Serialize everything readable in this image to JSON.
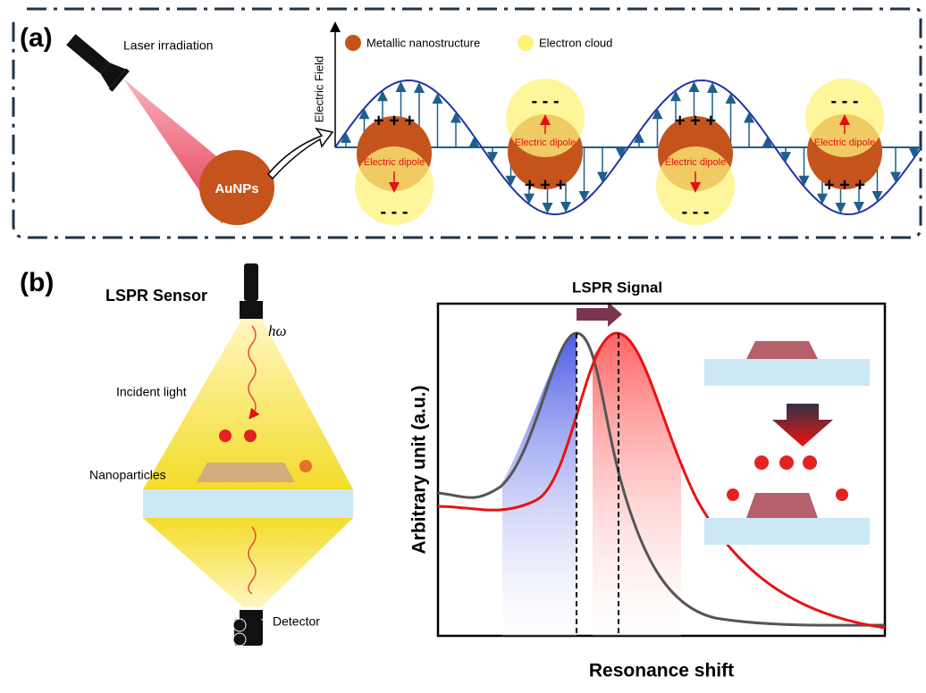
{
  "panel_a": {
    "label": "(a)",
    "laser_label": "Laser irradiation",
    "particle_label": "AuNPs",
    "axis_label": "Electric Field",
    "legend": [
      {
        "label": "Metallic nanostructure"
      },
      {
        "label": "Electron cloud"
      }
    ],
    "particles": [
      {
        "dipole": "Electric dipole",
        "positive": "+ + +",
        "negative": "- - -"
      },
      {
        "dipole": "Electric dipole",
        "positive": "+ + +",
        "negative": "- - -"
      },
      {
        "dipole": "Electric dipole",
        "positive": "+ + +",
        "negative": "- - -"
      },
      {
        "dipole": "Electric dipole",
        "positive": "+ + +",
        "negative": "- - -"
      }
    ]
  },
  "panel_b": {
    "label": "(b)",
    "sensor_title": "LSPR Sensor",
    "photon": "hω",
    "incident_label": "Incident light",
    "nanoparticle_label": "Nanoparticles",
    "detector_label": "Detector",
    "signal_title": "LSPR Signal",
    "y_axis_label": "Arbitrary unit (a.u.)",
    "x_axis_label": "Resonance shift"
  }
}
